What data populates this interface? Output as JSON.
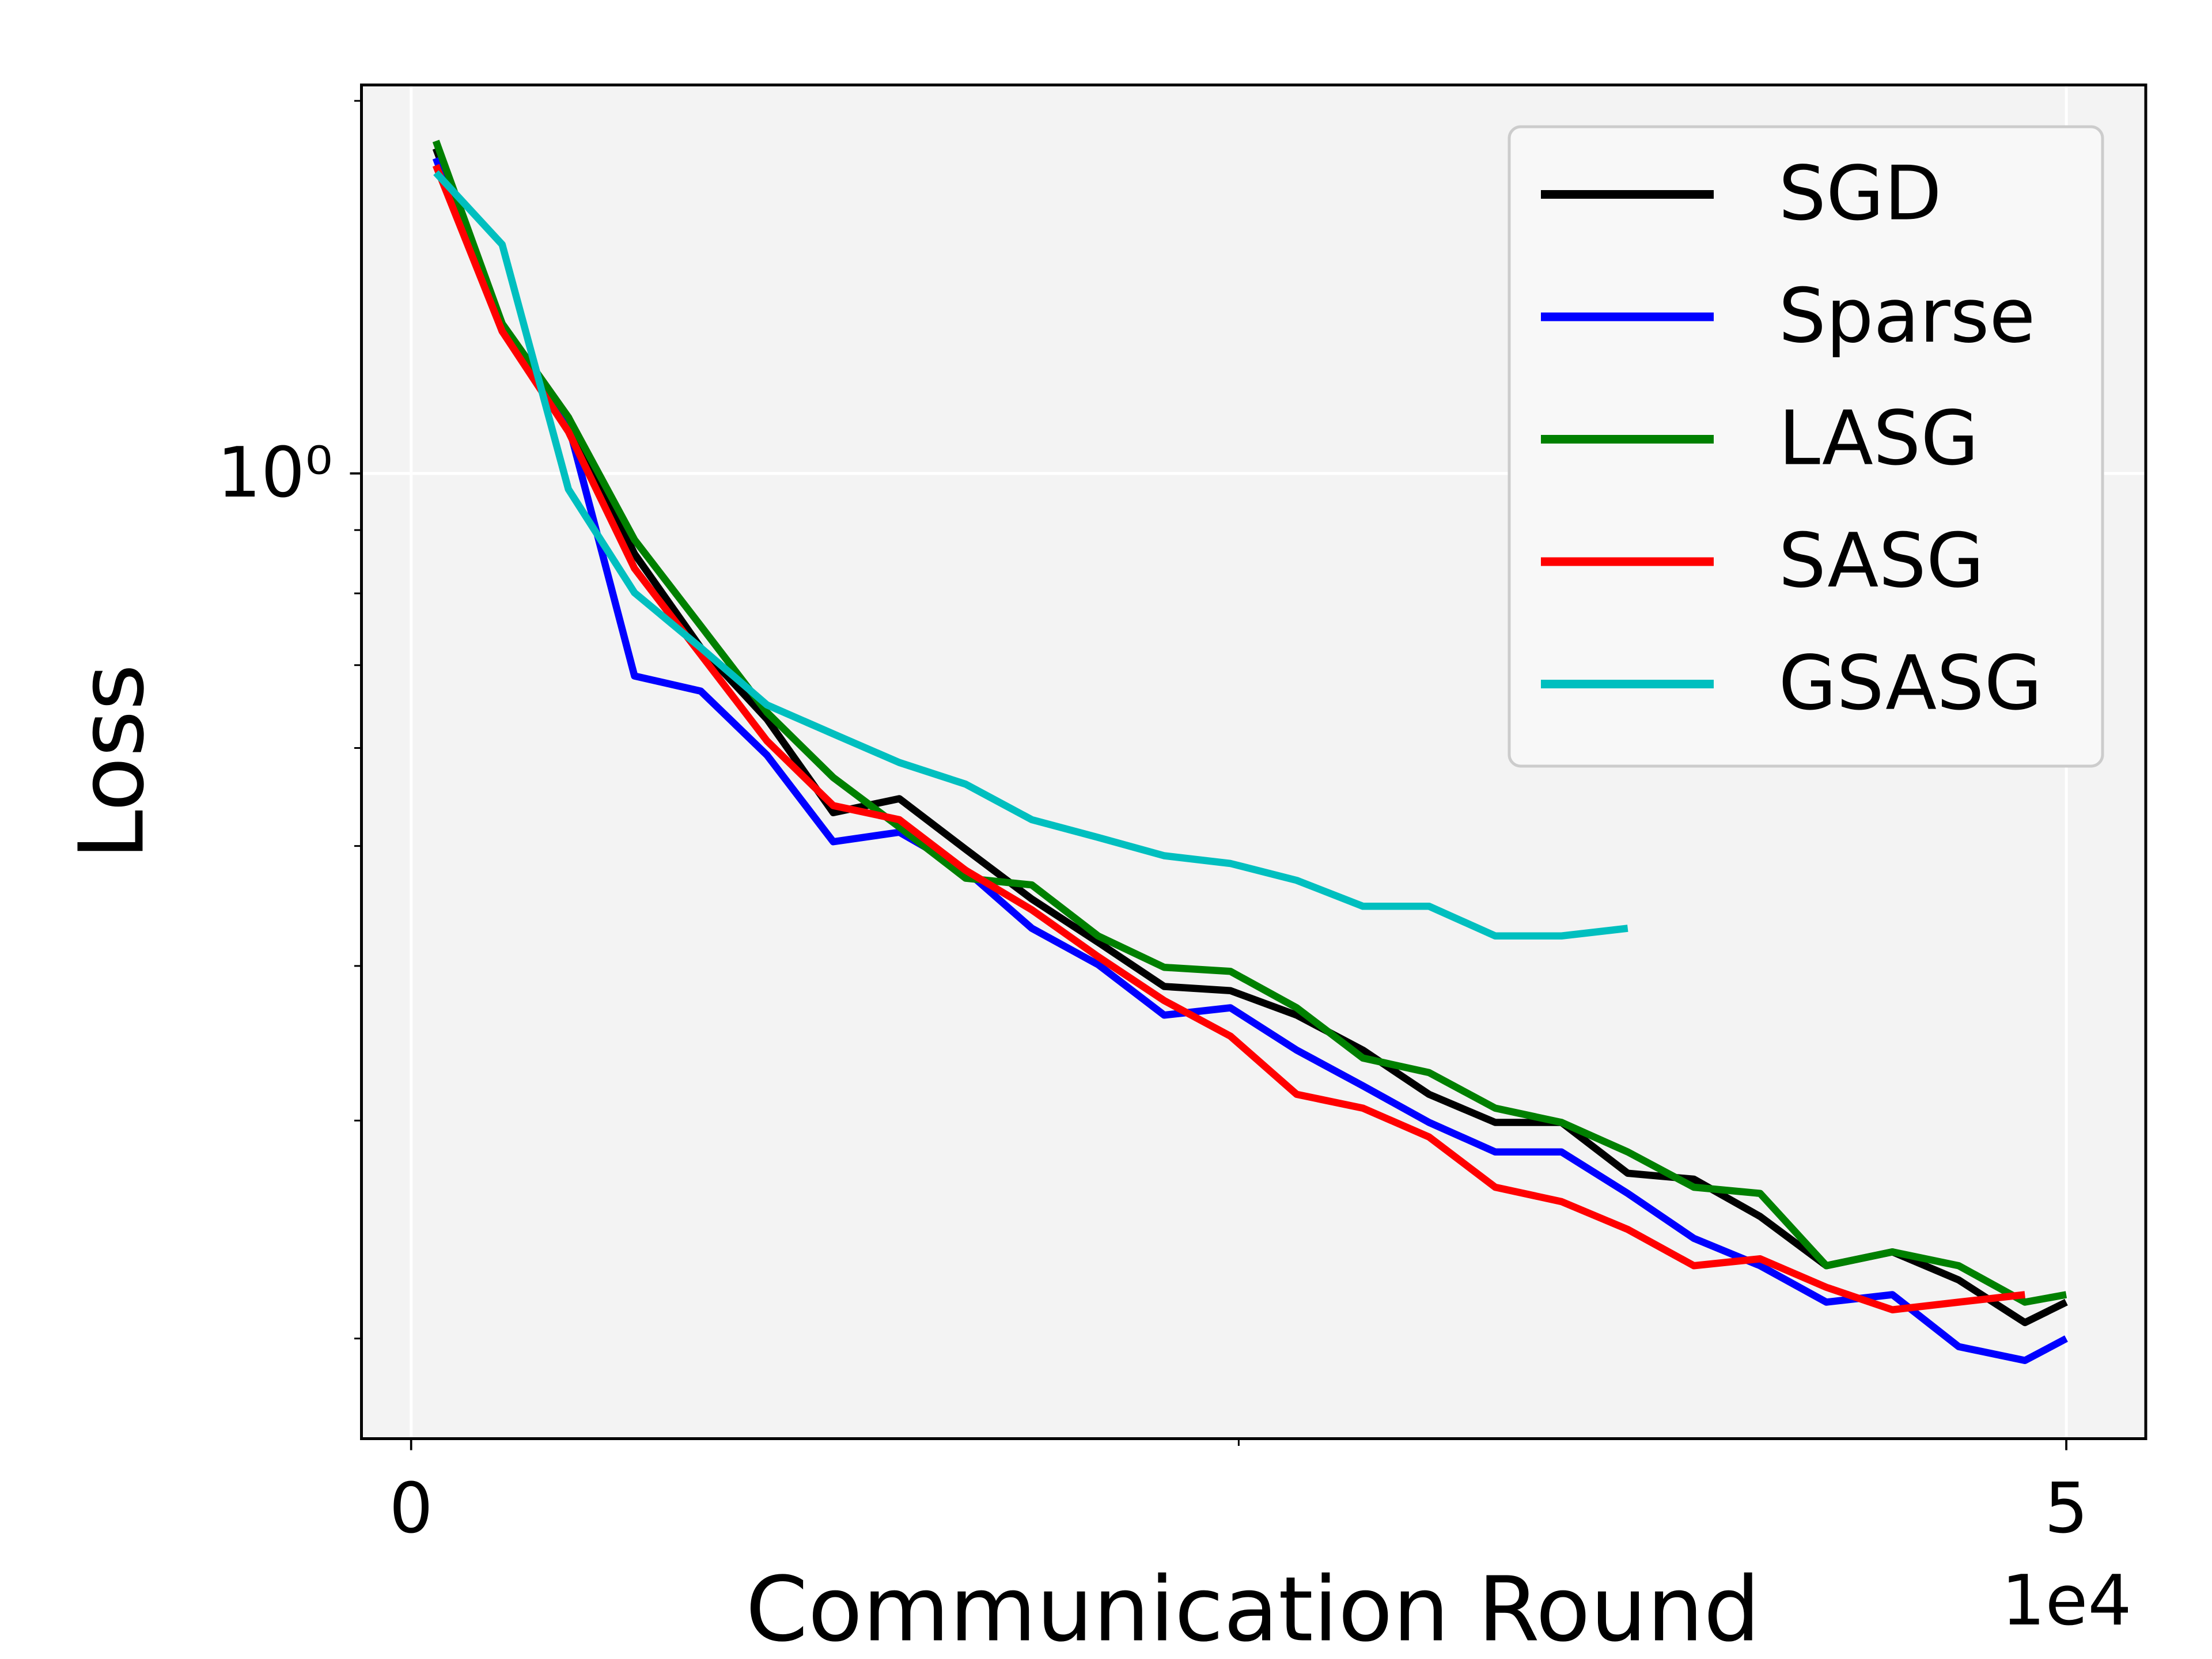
{
  "chart_data": {
    "type": "line",
    "xlabel": "Communication Round",
    "ylabel": "Loss",
    "x_offset_label": "1e4",
    "x": [
      750,
      2750,
      4750,
      6750,
      8750,
      10750,
      12750,
      14750,
      16750,
      18750,
      20750,
      22750,
      24750,
      26750,
      28750,
      30750,
      32750,
      34750,
      36750,
      38750,
      40750,
      42750,
      44750,
      46750,
      48750,
      50000
    ],
    "series": [
      {
        "name": "SGD",
        "color": "#000000",
        "values": [
          1.831,
          1.321,
          1.11,
          0.861,
          0.723,
          0.633,
          0.532,
          0.546,
          0.497,
          0.453,
          0.418,
          0.385,
          0.382,
          0.365,
          0.342,
          0.315,
          0.299,
          0.299,
          0.272,
          0.269,
          0.251,
          0.229,
          0.235,
          0.223,
          0.206,
          0.214
        ]
      },
      {
        "name": "Sparse",
        "color": "#0000ff",
        "values": [
          1.798,
          1.303,
          1.095,
          0.686,
          0.667,
          0.592,
          0.504,
          0.513,
          0.478,
          0.429,
          0.401,
          0.365,
          0.37,
          0.342,
          0.32,
          0.299,
          0.283,
          0.283,
          0.262,
          0.241,
          0.229,
          0.214,
          0.217,
          0.197,
          0.192,
          0.2
        ]
      },
      {
        "name": "LASG",
        "color": "#008000",
        "values": [
          1.856,
          1.321,
          1.11,
          0.884,
          0.753,
          0.641,
          0.568,
          0.518,
          0.471,
          0.465,
          0.423,
          0.399,
          0.396,
          0.37,
          0.337,
          0.328,
          0.307,
          0.299,
          0.283,
          0.265,
          0.262,
          0.229,
          0.235,
          0.229,
          0.214,
          0.217
        ]
      },
      {
        "name": "SASG",
        "color": "#ff0000",
        "values": [
          1.774,
          1.303,
          1.081,
          0.838,
          0.714,
          0.608,
          0.539,
          0.525,
          0.478,
          0.444,
          0.407,
          0.375,
          0.351,
          0.315,
          0.307,
          0.291,
          0.265,
          0.258,
          0.245,
          0.229,
          0.232,
          0.22,
          0.211,
          0.214,
          0.217,
          null
        ]
      },
      {
        "name": "GSASG",
        "color": "#00bfbf",
        "values": [
          1.75,
          1.531,
          0.971,
          0.801,
          0.723,
          0.65,
          0.616,
          0.584,
          0.561,
          0.525,
          0.508,
          0.491,
          0.484,
          0.469,
          0.447,
          0.447,
          0.423,
          0.423,
          0.429,
          null,
          null,
          null,
          null,
          null,
          null,
          null
        ]
      }
    ],
    "xlim": [
      -1500,
      52400
    ],
    "xticks": [
      0,
      {
        "value": 50000,
        "label": "5"
      }
    ],
    "xminorticks": [
      25000
    ],
    "ylim": [
      0.166,
      2.06
    ],
    "log_y": true,
    "yticks": [
      {
        "value": 1,
        "label": "10⁰"
      }
    ],
    "yminorticks": [
      0.2,
      0.3,
      0.4,
      0.5,
      0.6,
      0.7,
      0.8,
      0.9,
      2
    ],
    "grid": true,
    "legend": "upper right"
  }
}
